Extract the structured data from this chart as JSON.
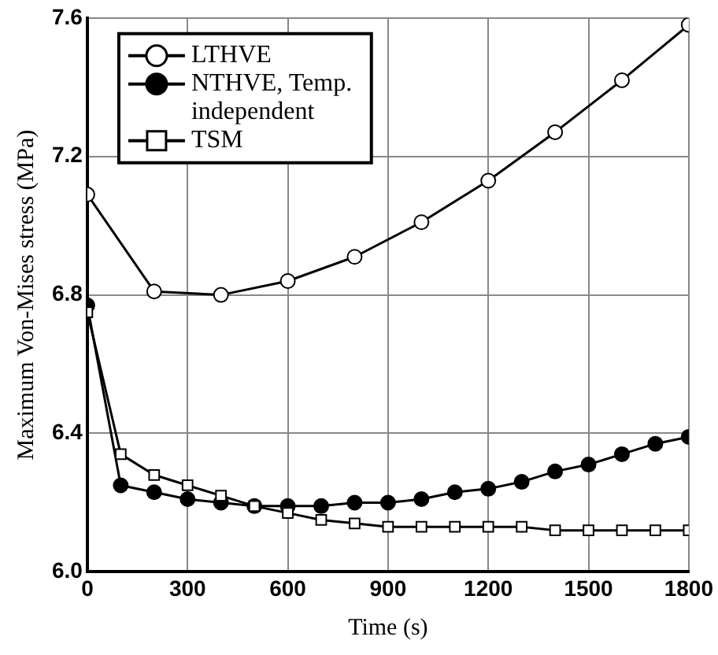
{
  "chart_data": {
    "type": "line",
    "xlabel": "Time (s)",
    "ylabel": "Maximum Von-Mises stress (MPa)",
    "xlim": [
      0,
      1800
    ],
    "xticks": [
      0,
      300,
      600,
      900,
      1200,
      1500,
      1800
    ],
    "ylim": [
      6.0,
      7.6
    ],
    "yticks": [
      {
        "value": 6.0,
        "label": "6.0"
      },
      {
        "value": 6.4,
        "label": "6.4"
      },
      {
        "value": 6.8,
        "label": "6.8"
      },
      {
        "value": 7.2,
        "label": "7.2"
      },
      {
        "value": 7.6,
        "label": "7.6"
      }
    ],
    "grid": true,
    "legend": "top left",
    "line_style": "solid",
    "series": [
      {
        "name": "LTHVE",
        "color": "#000000",
        "marker": "circle",
        "x": [
          0,
          200,
          400,
          600,
          800,
          1000,
          1200,
          1400,
          1600,
          1800
        ],
        "values": [
          7.09,
          6.81,
          6.8,
          6.84,
          6.91,
          7.01,
          7.13,
          7.27,
          7.42,
          7.58
        ]
      },
      {
        "name": "NTHVE, Temp. independent",
        "color": "#000000",
        "marker": "circle_filled",
        "x": [
          0,
          100,
          200,
          300,
          400,
          500,
          600,
          700,
          800,
          900,
          1000,
          1100,
          1200,
          1300,
          1400,
          1500,
          1600,
          1700,
          1800
        ],
        "values": [
          6.77,
          6.25,
          6.23,
          6.21,
          6.2,
          6.19,
          6.19,
          6.19,
          6.2,
          6.2,
          6.21,
          6.23,
          6.24,
          6.26,
          6.29,
          6.31,
          6.34,
          6.37,
          6.39
        ]
      },
      {
        "name": "TSM",
        "color": "#000000",
        "marker": "square",
        "x": [
          0,
          100,
          200,
          300,
          400,
          500,
          600,
          700,
          800,
          900,
          1000,
          1100,
          1200,
          1300,
          1400,
          1500,
          1600,
          1700,
          1800
        ],
        "values": [
          6.75,
          6.34,
          6.28,
          6.25,
          6.22,
          6.19,
          6.17,
          6.15,
          6.14,
          6.13,
          6.13,
          6.13,
          6.13,
          6.13,
          6.12,
          6.12,
          6.12,
          6.12,
          6.12
        ]
      }
    ]
  }
}
